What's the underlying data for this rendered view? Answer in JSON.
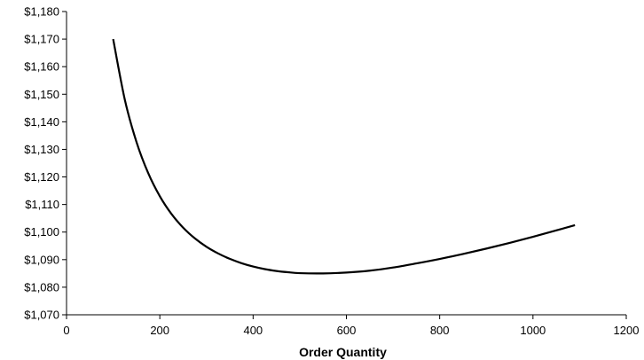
{
  "chart_data": {
    "type": "line",
    "title": "",
    "xlabel": "Order Quantity",
    "ylabel": "",
    "xlim": [
      0,
      1200
    ],
    "ylim": [
      1070,
      1180
    ],
    "x_ticks": [
      0,
      200,
      400,
      600,
      800,
      1000,
      1200
    ],
    "x_tick_labels": [
      "0",
      "200",
      "400",
      "600",
      "800",
      "1000",
      "1200"
    ],
    "y_ticks": [
      1070,
      1080,
      1090,
      1100,
      1110,
      1120,
      1130,
      1140,
      1150,
      1160,
      1170,
      1180
    ],
    "y_tick_labels": [
      "$1,070",
      "$1,080",
      "$1,090",
      "$1,100",
      "$1,110",
      "$1,120",
      "$1,130",
      "$1,140",
      "$1,150",
      "$1,160",
      "$1,170",
      "$1,180"
    ],
    "grid": false,
    "legend": "none",
    "series": [
      {
        "line_color": "#000000",
        "x": [
          100,
          125,
          150,
          175,
          200,
          225,
          250,
          275,
          300,
          325,
          350,
          375,
          400,
          425,
          450,
          475,
          500,
          550,
          600,
          650,
          700,
          750,
          800,
          850,
          900,
          950,
          1000,
          1050,
          1090
        ],
        "y": [
          1170,
          1148,
          1132.67,
          1121.43,
          1113,
          1106.56,
          1101.6,
          1097.73,
          1094.67,
          1092.25,
          1090.29,
          1088.73,
          1087.5,
          1086.56,
          1085.89,
          1085.43,
          1085.1,
          1085,
          1085.33,
          1086.0,
          1087.14,
          1088.63,
          1090.25,
          1092.04,
          1094.0,
          1096.08,
          1098.3,
          1100.6,
          1102.5
        ]
      }
    ]
  }
}
